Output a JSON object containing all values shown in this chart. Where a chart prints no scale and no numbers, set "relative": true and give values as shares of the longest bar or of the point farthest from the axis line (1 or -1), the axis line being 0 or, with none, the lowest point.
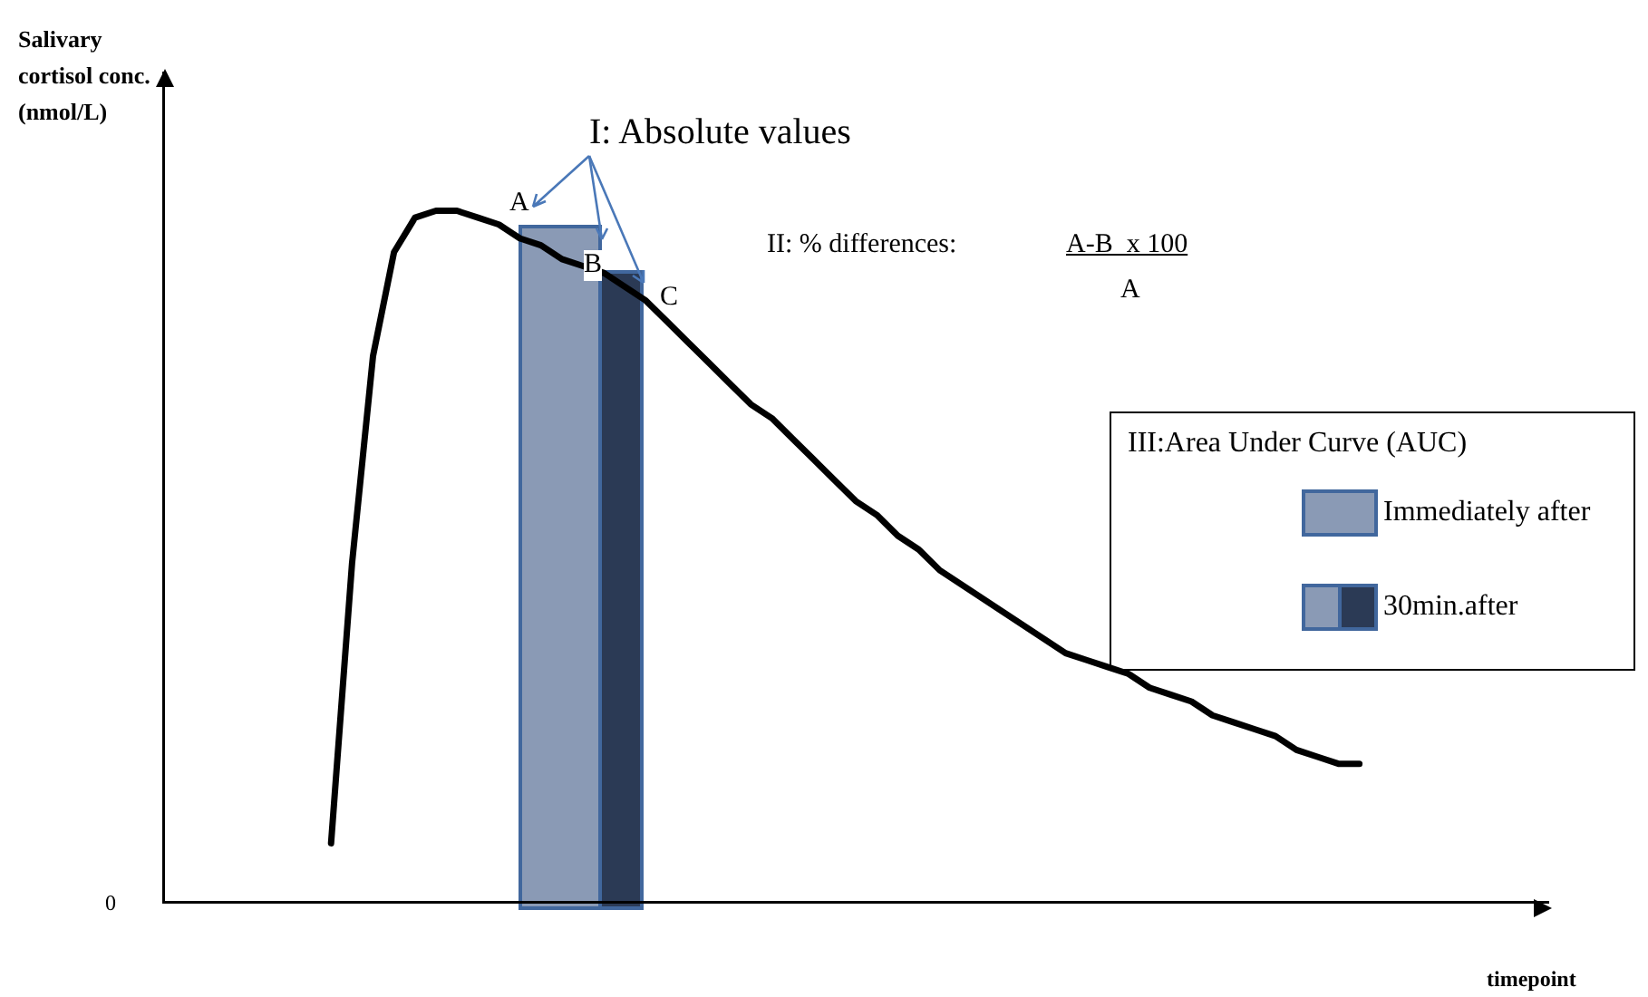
{
  "chart_data": {
    "type": "line",
    "relative": true,
    "xlabel": "timepoint",
    "ylabel": "Salivary cortisol conc. (nmol/L)",
    "grid": false,
    "marker": "none",
    "color": "#000000",
    "categories": [
      null,
      null,
      null,
      null,
      null,
      null,
      null,
      null,
      null,
      null,
      null,
      null,
      null,
      null,
      null,
      null,
      null,
      null,
      null,
      null,
      null,
      null,
      null,
      null,
      null,
      null,
      null,
      null,
      null,
      null,
      null,
      null,
      null,
      null,
      null,
      null,
      null,
      null,
      null,
      null,
      null,
      null,
      null,
      null,
      null,
      null,
      null,
      null,
      null,
      null,
      null,
      null,
      null,
      null,
      null,
      null,
      null,
      null,
      null,
      null,
      null,
      null,
      null,
      null,
      null,
      null,
      null
    ],
    "values": [
      null,
      null,
      null,
      null,
      null,
      null,
      null,
      null,
      0.085,
      0.49,
      0.79,
      0.94,
      0.99,
      1.0,
      1.0,
      0.99,
      0.98,
      0.96,
      0.95,
      0.93,
      0.92,
      0.91,
      0.89,
      0.87,
      0.84,
      0.81,
      0.78,
      0.75,
      0.72,
      0.7,
      0.67,
      0.64,
      0.61,
      0.58,
      0.56,
      0.53,
      0.51,
      0.48,
      0.46,
      0.44,
      0.42,
      0.4,
      0.38,
      0.36,
      0.35,
      0.34,
      0.33,
      0.31,
      0.3,
      0.29,
      0.27,
      0.26,
      0.25,
      0.24,
      0.22,
      0.21,
      0.2,
      0.2,
      null,
      null,
      null,
      null,
      null,
      null,
      null,
      null,
      null
    ],
    "annotations": [
      "I: Absolute values",
      "A",
      "B",
      "C",
      "II: % differences:",
      "A-B  x 100",
      "A",
      "0",
      "III:Area Under Curve (AUC)",
      "Immediately after",
      "30min.after"
    ]
  }
}
